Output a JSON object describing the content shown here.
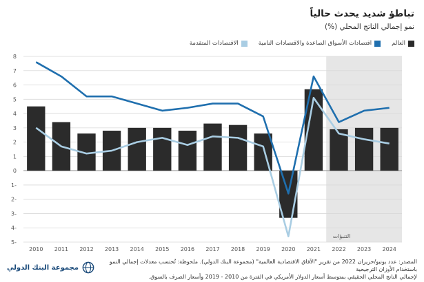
{
  "header": {
    "title": "تباطؤ شديد يحدث حالياً",
    "subtitle": "نمو إجمالي الناتج المحلي (%)"
  },
  "legend": [
    {
      "label": "العالم",
      "color": "#2b2b2b"
    },
    {
      "label": "اقتصادات الأسواق الصاعدة والاقتصادات النامية",
      "color": "#1f6fae"
    },
    {
      "label": "الاقتصادات المتقدمة",
      "color": "#a9cde3"
    }
  ],
  "forecast_label": "التنبؤات",
  "source": {
    "line1": "المصدر: عدد يونيو/حزيران 2022 من تقرير \"الآفاق الاقتصادية العالمية\" (مجموعة البنك الدولي). ملحوظة: تُحتسب معدلات إجمالي النمو باستخدام الأوزان الترجيحية",
    "line2": "لإجمالي الناتج المحلي الحقيقي بمتوسط أسعار الدولار الأمريكي في الفترة من 2010 - 2019 وأسعار الصرف بالسوق."
  },
  "logo": {
    "text": "مجموعة البنك الدولي",
    "icon": "globe-icon"
  },
  "colors": {
    "world": "#2b2b2b",
    "emde": "#1f6fae",
    "advanced": "#a9cde3",
    "forecast_bg": "#e6e6e6",
    "grid": "#d9d9d9"
  },
  "chart_data": {
    "type": "bar",
    "categories": [
      "2010",
      "2011",
      "2012",
      "2013",
      "2014",
      "2015",
      "2016",
      "2017",
      "2018",
      "2019",
      "2020",
      "2021",
      "2022",
      "2023",
      "2024"
    ],
    "series": [
      {
        "name": "العالم",
        "type": "bar",
        "values": [
          4.5,
          3.4,
          2.6,
          2.8,
          3.0,
          3.0,
          2.8,
          3.3,
          3.2,
          2.6,
          -3.3,
          5.7,
          2.9,
          3.0,
          3.0
        ]
      },
      {
        "name": "اقتصادات الأسواق الصاعدة والاقتصادات النامية",
        "type": "line",
        "values": [
          7.6,
          6.6,
          5.2,
          5.2,
          4.7,
          4.2,
          4.4,
          4.7,
          4.7,
          3.8,
          -1.6,
          6.6,
          3.4,
          4.2,
          4.4
        ]
      },
      {
        "name": "الاقتصادات المتقدمة",
        "type": "line",
        "values": [
          3.0,
          1.7,
          1.2,
          1.4,
          2.0,
          2.3,
          1.8,
          2.4,
          2.3,
          1.7,
          -4.6,
          5.1,
          2.6,
          2.2,
          1.9
        ]
      }
    ],
    "ylim": [
      -5,
      8
    ],
    "yticks": [
      "8",
      "7",
      "6",
      "5",
      "4",
      "3",
      "2",
      "1",
      "0",
      "1-",
      "2-",
      "3-",
      "4-",
      "5-"
    ],
    "forecast_start_index": 12,
    "grid": true,
    "legend_position": "top"
  }
}
